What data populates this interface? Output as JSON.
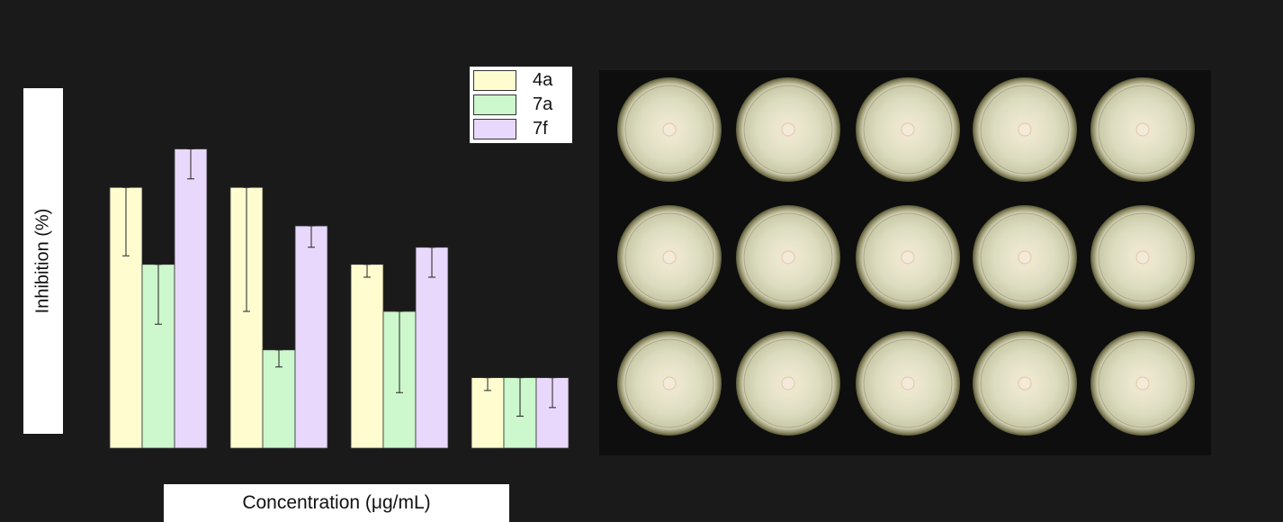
{
  "chart_data": {
    "type": "bar",
    "xlabel": "Concentration (μg/mL)",
    "ylabel": "Inhibition (%)",
    "ylim": [
      0,
      80
    ],
    "grid": false,
    "legend_position": "top-right",
    "categories": [
      "",
      "",
      "",
      ""
    ],
    "series": [
      {
        "name": "4a",
        "color": "#fffdd0",
        "values": [
          61,
          61,
          43,
          16.5
        ],
        "errors": [
          16,
          29,
          3,
          3
        ]
      },
      {
        "name": "7a",
        "color": "#cdf7cc",
        "values": [
          43,
          23,
          32,
          16.5
        ],
        "errors": [
          14,
          4,
          19,
          9
        ]
      },
      {
        "name": "7f",
        "color": "#e8d8fb",
        "values": [
          70,
          52,
          47,
          16.5
        ],
        "errors": [
          7,
          5,
          7,
          7
        ]
      }
    ]
  },
  "photo": {
    "description_icon": "petri-dish-grid",
    "rows": 3,
    "cols": 5
  }
}
